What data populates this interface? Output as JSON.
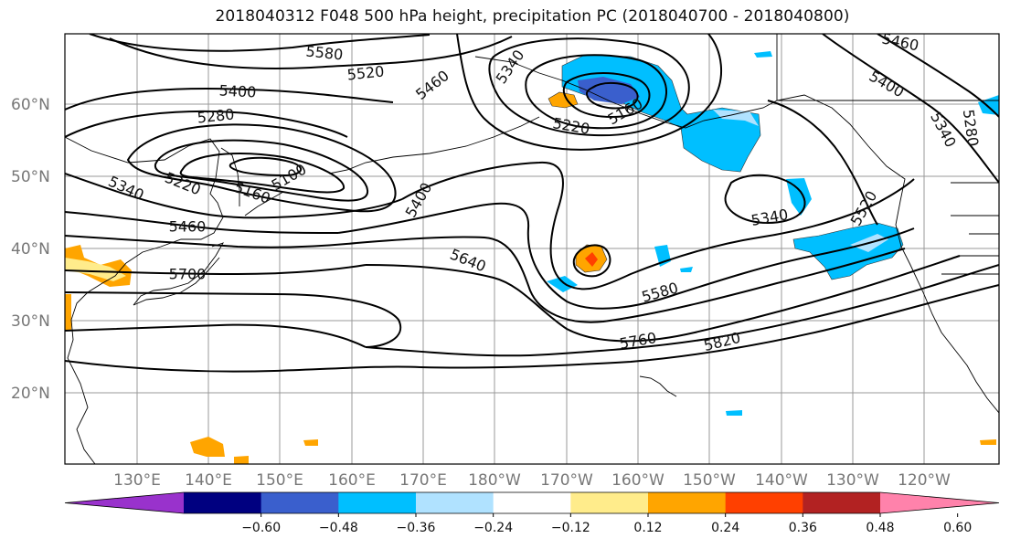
{
  "title": "2018040312 F048 500 hPa height, precipitation PC (2018040700 - 2018040800)",
  "lat_labels": [
    "60°N",
    "50°N",
    "40°N",
    "30°N",
    "20°N"
  ],
  "lon_labels": [
    "130°E",
    "140°E",
    "150°E",
    "160°E",
    "170°E",
    "180°W",
    "170°W",
    "160°W",
    "150°W",
    "140°W",
    "130°W",
    "120°W"
  ],
  "contour_labels": [
    "5580",
    "5520",
    "5400",
    "5280",
    "5340",
    "5220",
    "5160",
    "5100",
    "5460",
    "5700",
    "5400",
    "5460",
    "5340",
    "5220",
    "5160",
    "5640",
    "5580",
    "5760",
    "5820",
    "5340",
    "5520",
    "5460",
    "5400",
    "5280",
    "5340"
  ],
  "colorbar": {
    "colors": [
      "#9932cc",
      "#000080",
      "#3a5fcd",
      "#00bfff",
      "#b0e2ff",
      "#ffffff",
      "#ffec8b",
      "#ffa500",
      "#ff4000",
      "#b22222",
      "#ff82ab"
    ],
    "ticks": [
      "−0.60",
      "−0.48",
      "−0.36",
      "−0.24",
      "−0.12",
      "0.12",
      "0.24",
      "0.36",
      "0.48",
      "0.60"
    ]
  }
}
